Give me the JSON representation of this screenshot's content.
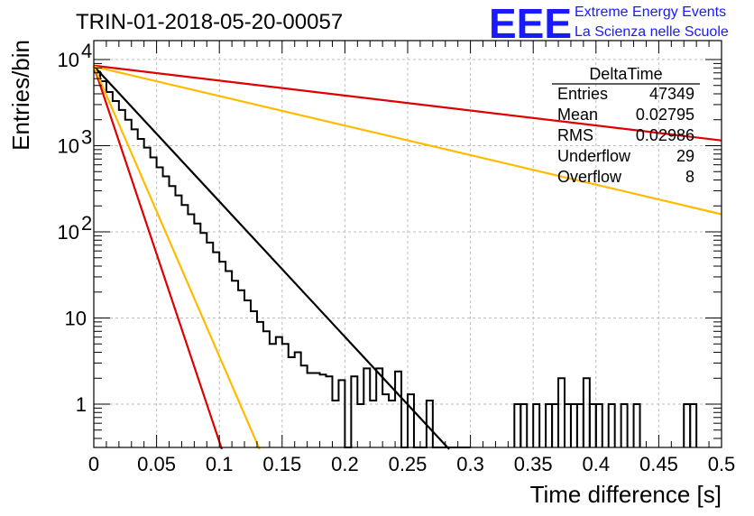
{
  "chart_data": {
    "type": "line",
    "title": "TRIN-01-2018-05-20-00057",
    "xlabel": "Time difference [s]",
    "ylabel": "Entries/bin",
    "xlim": [
      0,
      0.5
    ],
    "ylim": [
      0.3,
      16000
    ],
    "yscale": "log",
    "grid": true,
    "x_ticks": [
      "0",
      "0.05",
      "0.1",
      "0.15",
      "0.2",
      "0.25",
      "0.3",
      "0.35",
      "0.4",
      "0.45",
      "0.5"
    ],
    "y_ticks": [
      {
        "value": 1,
        "label": "1"
      },
      {
        "value": 10,
        "label": "10"
      },
      {
        "value": 100,
        "label": "10",
        "exp": "2"
      },
      {
        "value": 1000,
        "label": "10",
        "exp": "3"
      },
      {
        "value": 10000,
        "label": "10",
        "exp": "4"
      }
    ],
    "histogram": {
      "name": "DeltaTime",
      "color": "#000000",
      "bin_width": 0.005,
      "bins_x_start": 0,
      "values": [
        7200,
        5600,
        4200,
        3300,
        2600,
        2000,
        1550,
        1200,
        950,
        730,
        560,
        440,
        340,
        265,
        205,
        160,
        125,
        97,
        75,
        58,
        45,
        35,
        27,
        21,
        16,
        12,
        9,
        7,
        5,
        6,
        5,
        3.5,
        4,
        2.8,
        2.3,
        2.3,
        2.2,
        2.1,
        1.1,
        1.9,
        0.3,
        2.1,
        1.0,
        2.6,
        1.1,
        2.6,
        1.3,
        1.1,
        2.4,
        0.3,
        1.3,
        0.3,
        0.3,
        1.1,
        0.3,
        0.3,
        0.3,
        0.3,
        0.3,
        0.3
      ]
    },
    "histogram_tail": [
      {
        "x0": 0.335,
        "x1": 0.34,
        "y": 1.0
      },
      {
        "x0": 0.34,
        "x1": 0.345,
        "y": 1.0
      },
      {
        "x0": 0.35,
        "x1": 0.355,
        "y": 1.0
      },
      {
        "x0": 0.36,
        "x1": 0.365,
        "y": 1.0
      },
      {
        "x0": 0.365,
        "x1": 0.37,
        "y": 1.0
      },
      {
        "x0": 0.37,
        "x1": 0.375,
        "y": 2.0
      },
      {
        "x0": 0.375,
        "x1": 0.38,
        "y": 1.0
      },
      {
        "x0": 0.38,
        "x1": 0.385,
        "y": 1.0
      },
      {
        "x0": 0.385,
        "x1": 0.39,
        "y": 1.0
      },
      {
        "x0": 0.39,
        "x1": 0.395,
        "y": 2.0
      },
      {
        "x0": 0.395,
        "x1": 0.4,
        "y": 1.0
      },
      {
        "x0": 0.4,
        "x1": 0.405,
        "y": 1.0
      },
      {
        "x0": 0.41,
        "x1": 0.415,
        "y": 1.0
      },
      {
        "x0": 0.42,
        "x1": 0.425,
        "y": 1.0
      },
      {
        "x0": 0.43,
        "x1": 0.435,
        "y": 1.0
      },
      {
        "x0": 0.47,
        "x1": 0.475,
        "y": 1.0
      },
      {
        "x0": 0.475,
        "x1": 0.48,
        "y": 1.0
      }
    ],
    "series": [
      {
        "color": "#000000",
        "x": [
          0,
          0.283
        ],
        "y": [
          8400,
          0.3
        ]
      },
      {
        "color": "#dd0000",
        "x": [
          0,
          0.5
        ],
        "y": [
          8500,
          1150
        ]
      },
      {
        "color": "#ffbb00",
        "x": [
          0,
          0.5
        ],
        "y": [
          8300,
          160
        ]
      },
      {
        "color": "#dd0000",
        "x": [
          0,
          0.102
        ],
        "y": [
          8400,
          0.3
        ]
      },
      {
        "color": "#ffbb00",
        "x": [
          0,
          0.132
        ],
        "y": [
          8400,
          0.3
        ]
      }
    ],
    "stats_box": {
      "title": "DeltaTime",
      "rows": [
        {
          "label": "Entries",
          "value": "47349"
        },
        {
          "label": "Mean",
          "value": "0.02795"
        },
        {
          "label": "RMS",
          "value": "0.02986"
        },
        {
          "label": "Underflow",
          "value": "29"
        },
        {
          "label": "Overflow",
          "value": "8"
        }
      ]
    }
  },
  "logo": {
    "mark": "EEE",
    "line1": "Extreme Energy Events",
    "line2": "La Scienza nelle Scuole"
  }
}
